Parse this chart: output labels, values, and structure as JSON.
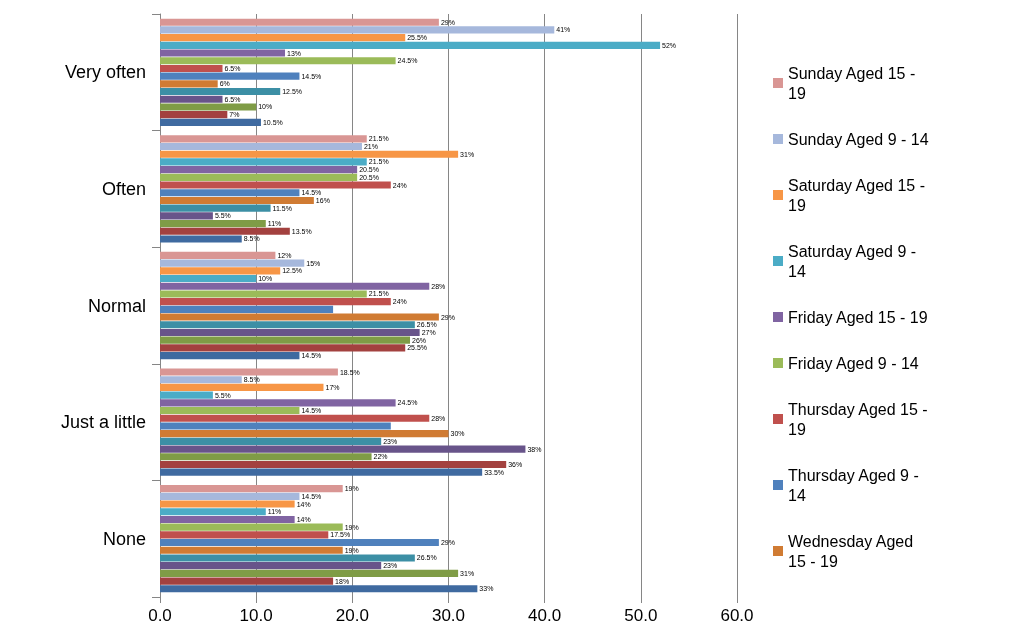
{
  "chart_data": {
    "type": "bar",
    "orientation": "horizontal",
    "categories": [
      "Very often",
      "Often",
      "Normal",
      "Just a little",
      "None"
    ],
    "series": [
      {
        "name": "Sunday Aged 15 - 19",
        "color": "#d99694",
        "values": [
          29,
          21.5,
          12,
          18.5,
          19
        ],
        "value_labels": [
          "29%",
          "21.5%",
          "12%",
          "18.5%",
          "19%"
        ]
      },
      {
        "name": "Sunday Aged 9 - 14",
        "color": "#a6b8dc",
        "values": [
          41,
          21,
          15,
          8.5,
          14.5
        ],
        "value_labels": [
          "41%",
          "21%",
          "15%",
          "8.5%",
          "14.5%"
        ]
      },
      {
        "name": "Saturday Aged 15 - 19",
        "color": "#f79646",
        "values": [
          25.5,
          31,
          12.5,
          17,
          14
        ],
        "value_labels": [
          "25.5%",
          "31%",
          "12.5%",
          "17%",
          "14%"
        ]
      },
      {
        "name": "Saturday Aged 9 - 14",
        "color": "#4bacc6",
        "values": [
          52,
          21.5,
          10,
          5.5,
          11
        ],
        "value_labels": [
          "52%",
          "21.5%",
          "10%",
          "5.5%",
          "11%"
        ]
      },
      {
        "name": "Friday Aged 15 - 19",
        "color": "#8064a2",
        "values": [
          13,
          20.5,
          28,
          24.5,
          14
        ],
        "value_labels": [
          "13%",
          "20.5%",
          "28%",
          "24.5%",
          "14%"
        ]
      },
      {
        "name": "Friday Aged 9 - 14",
        "color": "#9bbb59",
        "values": [
          24.5,
          20.5,
          21.5,
          14.5,
          19
        ],
        "value_labels": [
          "24.5%",
          "20.5%",
          "21.5%",
          "14.5%",
          "19%"
        ]
      },
      {
        "name": "Thursday Aged 15 - 19",
        "color": "#c0504d",
        "values": [
          6.5,
          24,
          24,
          28,
          17.5
        ],
        "value_labels": [
          "6.5%",
          "24%",
          "24%",
          "28%",
          "17.5%"
        ]
      },
      {
        "name": "Thursday Aged 9 - 14",
        "color": "#4f81bd",
        "values": [
          14.5,
          14.5,
          18,
          24,
          29
        ],
        "value_labels": [
          "14.5%",
          "14.5%",
          null,
          null,
          "29%"
        ]
      },
      {
        "name": "Wednesday Aged 15 - 19",
        "color": "#d07b33",
        "values": [
          6,
          16,
          29,
          30,
          19
        ],
        "value_labels": [
          "6%",
          "16%",
          "29%",
          "30%",
          "19%"
        ]
      },
      {
        "color": "#3c8fa5",
        "values": [
          12.5,
          11.5,
          26.5,
          23,
          26.5
        ],
        "value_labels": [
          "12.5%",
          "11.5%",
          "26.5%",
          "23%",
          "26.5%"
        ]
      },
      {
        "color": "#68548a",
        "values": [
          6.5,
          5.5,
          27,
          38,
          23
        ],
        "value_labels": [
          "6.5%",
          "5.5%",
          "27%",
          "38%",
          "23%"
        ]
      },
      {
        "color": "#7f9c46",
        "values": [
          10,
          11,
          26,
          22,
          31
        ],
        "value_labels": [
          "10%",
          "11%",
          "26%",
          "22%",
          "31%"
        ]
      },
      {
        "color": "#a3413f",
        "values": [
          7,
          13.5,
          25.5,
          36,
          18
        ],
        "value_labels": [
          "7%",
          "13.5%",
          "25.5%",
          "36%",
          "18%"
        ]
      },
      {
        "color": "#3f6aa0",
        "values": [
          10.5,
          8.5,
          14.5,
          33.5,
          33
        ],
        "value_labels": [
          "10.5%",
          "8.5%",
          "14.5%",
          "33.5%",
          "33%"
        ]
      }
    ],
    "xlim": [
      0,
      60
    ],
    "xticks": [
      {
        "value": 0,
        "label": "0.0"
      },
      {
        "value": 10,
        "label": "10.0"
      },
      {
        "value": 20,
        "label": "20.0"
      },
      {
        "value": 30,
        "label": "30.0"
      },
      {
        "value": 40,
        "label": "40.0"
      },
      {
        "value": 50,
        "label": "50.0"
      },
      {
        "value": 60,
        "label": "60.0"
      }
    ],
    "grid": "x",
    "legend": "right"
  }
}
